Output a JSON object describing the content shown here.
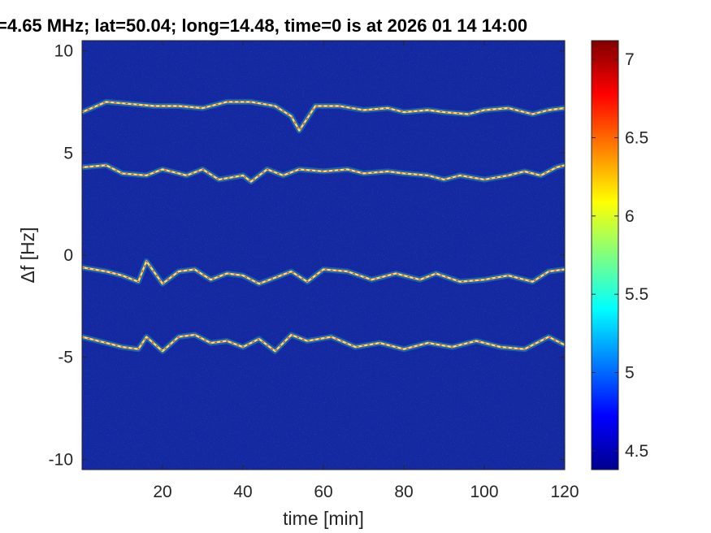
{
  "chart_data": {
    "type": "heatmap",
    "title": "=4.65 MHz;  lat=50.04; long=14.48, time=0 is at 2026 01 14 14:00",
    "xlabel": "time [min]",
    "ylabel": "Δf [Hz]",
    "xlim": [
      0,
      120
    ],
    "ylim": [
      -10.5,
      10.5
    ],
    "xticks": [
      20,
      40,
      60,
      80,
      100,
      120
    ],
    "yticks": [
      10,
      5,
      0,
      -5,
      -10
    ],
    "colorbar": {
      "colormap": "jet",
      "range": [
        4.38,
        7.12
      ],
      "ticks": [
        7,
        6.5,
        6,
        5.5,
        5,
        4.5
      ]
    },
    "background_color": "#1428a0",
    "traces": [
      {
        "x": [
          0,
          6,
          12,
          18,
          24,
          30,
          36,
          42,
          48,
          52,
          54,
          58,
          64,
          70,
          76,
          80,
          86,
          90,
          96,
          100,
          106,
          112,
          116,
          120
        ],
        "y": [
          7.0,
          7.5,
          7.4,
          7.3,
          7.3,
          7.2,
          7.5,
          7.5,
          7.3,
          6.8,
          6.1,
          7.3,
          7.3,
          7.1,
          7.2,
          7.0,
          7.1,
          7.0,
          6.9,
          7.1,
          7.2,
          6.9,
          7.1,
          7.2
        ]
      },
      {
        "x": [
          0,
          6,
          10,
          16,
          20,
          26,
          30,
          34,
          40,
          42,
          46,
          50,
          54,
          60,
          66,
          70,
          76,
          80,
          86,
          90,
          94,
          100,
          106,
          110,
          114,
          118,
          120
        ],
        "y": [
          4.3,
          4.4,
          4.0,
          3.9,
          4.2,
          3.9,
          4.2,
          3.7,
          3.9,
          3.6,
          4.2,
          3.9,
          4.2,
          4.1,
          4.2,
          4.0,
          4.1,
          4.0,
          3.9,
          3.7,
          3.9,
          3.7,
          3.9,
          4.1,
          3.9,
          4.3,
          4.4
        ]
      },
      {
        "x": [
          0,
          6,
          10,
          14,
          16,
          20,
          24,
          28,
          32,
          36,
          40,
          44,
          48,
          52,
          56,
          60,
          66,
          72,
          78,
          84,
          88,
          94,
          100,
          106,
          112,
          116,
          120
        ],
        "y": [
          -0.6,
          -0.8,
          -1.0,
          -1.3,
          -0.3,
          -1.4,
          -0.8,
          -0.7,
          -1.2,
          -0.9,
          -1.0,
          -1.4,
          -1.1,
          -0.8,
          -1.3,
          -0.7,
          -0.8,
          -1.2,
          -0.9,
          -1.2,
          -0.9,
          -1.3,
          -1.2,
          -1.0,
          -1.3,
          -0.8,
          -0.7
        ]
      },
      {
        "x": [
          0,
          6,
          10,
          14,
          16,
          20,
          24,
          28,
          32,
          36,
          40,
          44,
          48,
          52,
          56,
          62,
          68,
          74,
          80,
          86,
          92,
          98,
          104,
          110,
          116,
          120
        ],
        "y": [
          -4.0,
          -4.3,
          -4.5,
          -4.6,
          -4.0,
          -4.7,
          -4.0,
          -3.9,
          -4.3,
          -4.2,
          -4.5,
          -4.1,
          -4.7,
          -3.9,
          -4.2,
          -4.0,
          -4.5,
          -4.3,
          -4.6,
          -4.3,
          -4.5,
          -4.2,
          -4.5,
          -4.6,
          -4.0,
          -4.4
        ]
      }
    ]
  }
}
